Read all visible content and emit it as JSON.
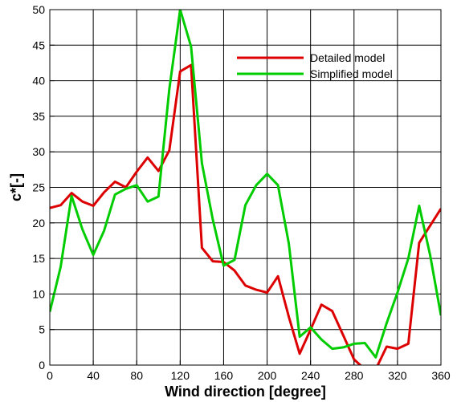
{
  "chart_data": {
    "type": "line",
    "xlabel": "Wind direction [degree]",
    "ylabel": "c*[-]",
    "xlim": [
      0,
      360
    ],
    "ylim": [
      0,
      50
    ],
    "xticks": [
      0,
      40,
      80,
      120,
      160,
      200,
      240,
      280,
      320,
      360
    ],
    "yticks": [
      0,
      5,
      10,
      15,
      20,
      25,
      30,
      35,
      40,
      45,
      50
    ],
    "xtick_labels": [
      "0",
      "40",
      "80",
      "120",
      "160",
      "200",
      "240",
      "280",
      "320",
      "360"
    ],
    "ytick_labels": [
      "0",
      "5",
      "10",
      "15",
      "20",
      "25",
      "30",
      "35",
      "40",
      "45",
      "50"
    ],
    "grid": true,
    "legend_position": "top-right",
    "x": [
      0,
      10,
      20,
      30,
      40,
      50,
      60,
      70,
      80,
      90,
      100,
      110,
      120,
      130,
      140,
      150,
      160,
      170,
      180,
      190,
      200,
      210,
      220,
      230,
      240,
      250,
      260,
      270,
      280,
      290,
      300,
      310,
      320,
      330,
      340,
      350,
      360
    ],
    "series": [
      {
        "name": "Detailed model",
        "color": "#dd0000",
        "values": [
          22.1,
          22.5,
          24.2,
          23.0,
          22.4,
          24.3,
          25.8,
          25.0,
          27.2,
          29.2,
          27.3,
          30.2,
          41.3,
          42.2,
          16.5,
          14.6,
          14.5,
          13.3,
          11.2,
          10.6,
          10.2,
          12.5,
          6.8,
          1.6,
          5.0,
          8.5,
          7.6,
          4.2,
          0.8,
          -0.6,
          -0.6,
          2.6,
          2.3,
          3.0,
          17.2,
          19.6,
          22.0
        ]
      },
      {
        "name": "Simplified model",
        "color": "#00cc00",
        "values": [
          7.5,
          13.8,
          23.8,
          19.1,
          15.5,
          18.9,
          24.0,
          24.8,
          25.3,
          23.0,
          23.7,
          38.8,
          50.0,
          44.8,
          28.4,
          20.5,
          14.0,
          14.8,
          22.5,
          25.3,
          26.9,
          25.3,
          17.1,
          4.0,
          5.3,
          3.6,
          2.3,
          2.5,
          3.0,
          3.1,
          1.1,
          5.9,
          10.2,
          15.0,
          22.4,
          15.5,
          7.0
        ]
      }
    ]
  }
}
